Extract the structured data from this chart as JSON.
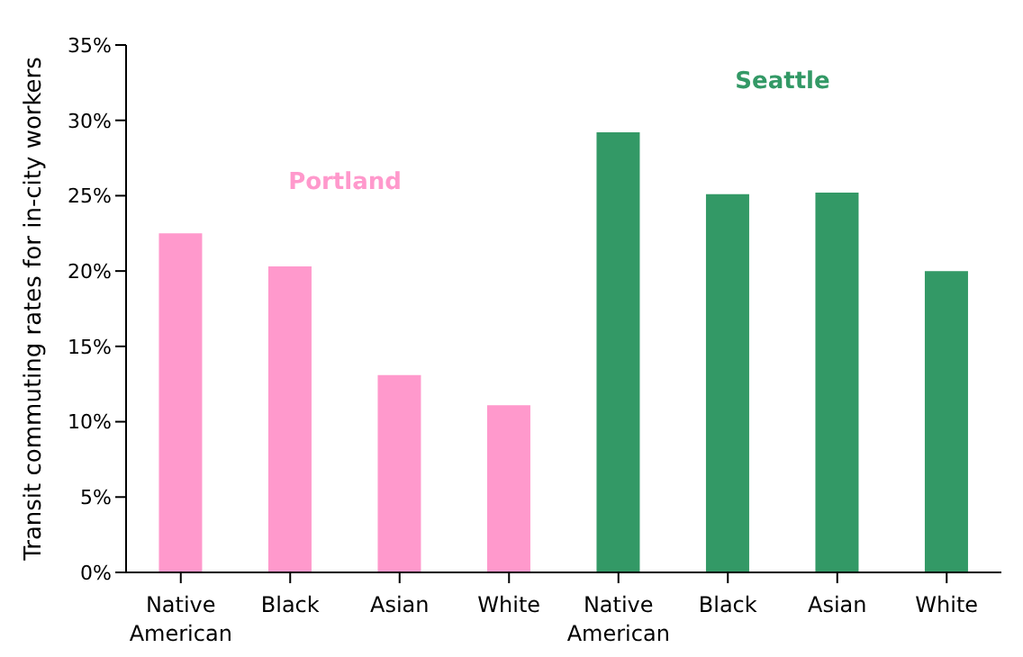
{
  "chart_data": {
    "type": "bar",
    "ylabel": "Transit commuting rates for in-city workers",
    "categories": [
      "Native American",
      "Black",
      "Asian",
      "White",
      "Native American",
      "Black",
      "Asian",
      "White"
    ],
    "series": [
      {
        "name": "Portland",
        "color": "#ff99cc",
        "values": [
          22.5,
          20.3,
          13.1,
          11.1,
          null,
          null,
          null,
          null
        ]
      },
      {
        "name": "Seattle",
        "color": "#339966",
        "values": [
          null,
          null,
          null,
          null,
          29.2,
          25.1,
          25.2,
          20.0
        ]
      }
    ],
    "ylim": [
      0,
      35
    ],
    "yticks": [
      {
        "value": 0,
        "label": "0%"
      },
      {
        "value": 5,
        "label": "5%"
      },
      {
        "value": 10,
        "label": "10%"
      },
      {
        "value": 15,
        "label": "15%"
      },
      {
        "value": 20,
        "label": "20%"
      },
      {
        "value": 25,
        "label": "25%"
      },
      {
        "value": 30,
        "label": "30%"
      },
      {
        "value": 35,
        "label": "35%"
      }
    ],
    "grid": false,
    "legend": false
  }
}
